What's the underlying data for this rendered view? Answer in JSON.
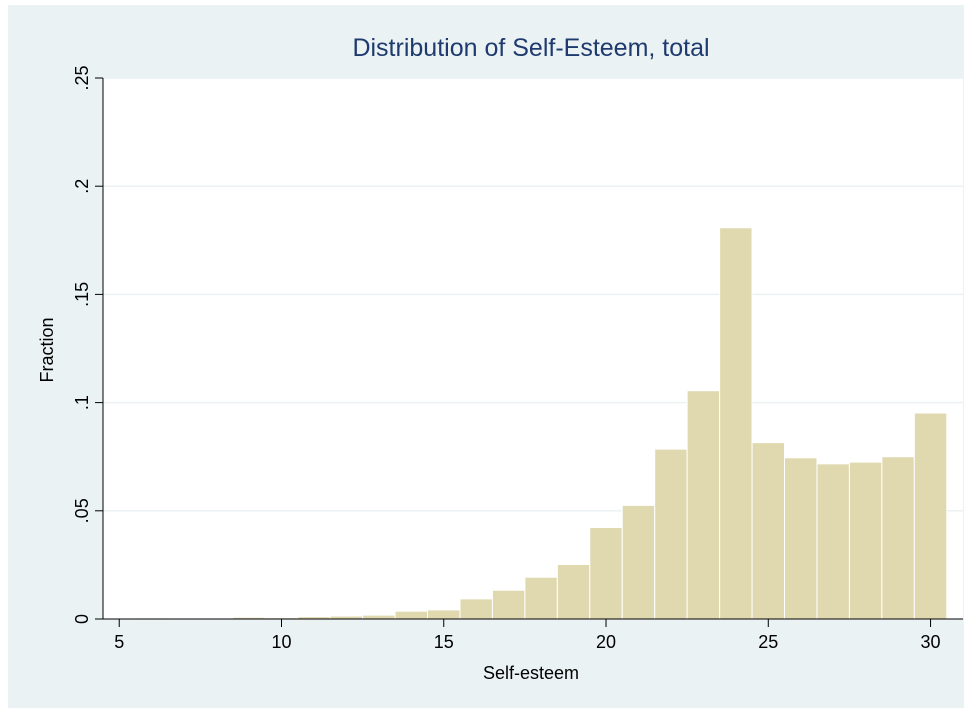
{
  "chart_data": {
    "type": "bar",
    "title": "Distribution of Self-Esteem, total",
    "xlabel": "Self-esteem",
    "ylabel": "Fraction",
    "xlim": [
      4.5,
      31
    ],
    "ylim": [
      0,
      0.25
    ],
    "xticks": [
      {
        "value": 5,
        "label": "5"
      },
      {
        "value": 10,
        "label": "10"
      },
      {
        "value": 15,
        "label": "15"
      },
      {
        "value": 20,
        "label": "20"
      },
      {
        "value": 25,
        "label": "25"
      },
      {
        "value": 30,
        "label": "30"
      }
    ],
    "yticks": [
      {
        "value": 0,
        "label": "0"
      },
      {
        "value": 0.05,
        "label": ".05"
      },
      {
        "value": 0.1,
        "label": ".1"
      },
      {
        "value": 0.15,
        "label": ".15"
      },
      {
        "value": 0.2,
        "label": ".2"
      },
      {
        "value": 0.25,
        "label": ".25"
      }
    ],
    "bin_width": 1,
    "bins": [
      {
        "start": 5.5,
        "value": 0.0005
      },
      {
        "start": 6.5,
        "value": 0.0002
      },
      {
        "start": 7.5,
        "value": 0.0002
      },
      {
        "start": 8.5,
        "value": 0.0008
      },
      {
        "start": 9.5,
        "value": 0.0006
      },
      {
        "start": 10.5,
        "value": 0.0011
      },
      {
        "start": 11.5,
        "value": 0.0014
      },
      {
        "start": 12.5,
        "value": 0.0018
      },
      {
        "start": 13.5,
        "value": 0.0036
      },
      {
        "start": 14.5,
        "value": 0.0042
      },
      {
        "start": 15.5,
        "value": 0.0093
      },
      {
        "start": 16.5,
        "value": 0.0133
      },
      {
        "start": 17.5,
        "value": 0.0193
      },
      {
        "start": 18.5,
        "value": 0.0252
      },
      {
        "start": 19.5,
        "value": 0.0423
      },
      {
        "start": 20.5,
        "value": 0.0525
      },
      {
        "start": 21.5,
        "value": 0.0785
      },
      {
        "start": 22.5,
        "value": 0.1055
      },
      {
        "start": 23.5,
        "value": 0.1808
      },
      {
        "start": 24.5,
        "value": 0.0815
      },
      {
        "start": 25.5,
        "value": 0.0745
      },
      {
        "start": 26.5,
        "value": 0.0717
      },
      {
        "start": 27.5,
        "value": 0.0725
      },
      {
        "start": 28.5,
        "value": 0.075
      },
      {
        "start": 29.5,
        "value": 0.0952
      }
    ],
    "grid": true,
    "colors": {
      "background": "#eaf2f3",
      "plot": "#ffffff",
      "bar_fill": "#e0d9b0",
      "bar_stroke": "#ffffff",
      "gridline": "#eaf2f3",
      "title": "#1e3a6e"
    }
  }
}
